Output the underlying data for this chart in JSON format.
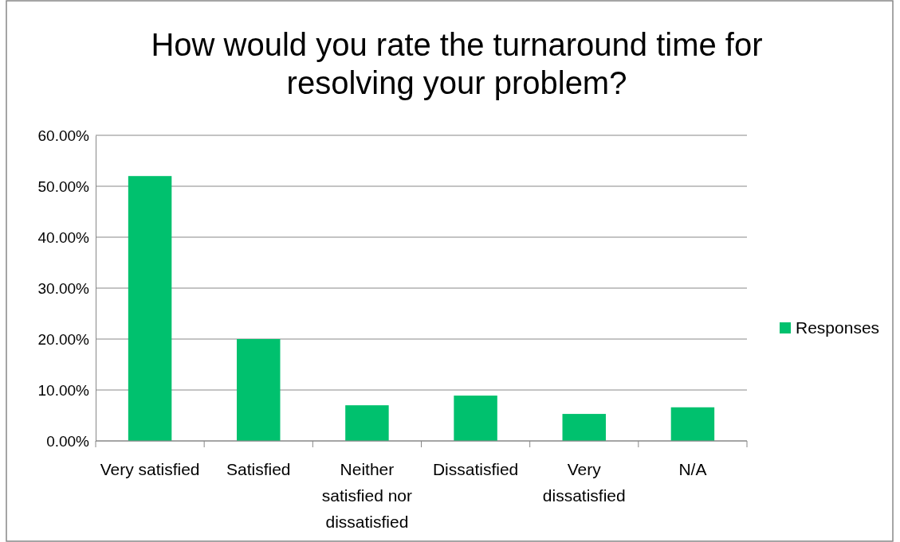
{
  "chart_data": {
    "type": "bar",
    "title": "How would you rate the turnaround time for resolving your problem?",
    "categories": [
      "Very satisfied",
      "Satisfied",
      "Neither satisfied nor dissatisfied",
      "Dissatisfied",
      "Very dissatisfied",
      "N/A"
    ],
    "series": [
      {
        "name": "Responses",
        "color": "#00c16e",
        "values": [
          52.0,
          20.0,
          7.0,
          8.9,
          5.3,
          6.6
        ]
      }
    ],
    "ylim": [
      0,
      60
    ],
    "yticks": [
      {
        "value": 0,
        "label": "0.00%"
      },
      {
        "value": 10,
        "label": "10.00%"
      },
      {
        "value": 20,
        "label": "20.00%"
      },
      {
        "value": 30,
        "label": "30.00%"
      },
      {
        "value": 40,
        "label": "40.00%"
      },
      {
        "value": 50,
        "label": "50.00%"
      },
      {
        "value": 60,
        "label": "60.00%"
      }
    ],
    "grid": "y",
    "legend": "right"
  }
}
